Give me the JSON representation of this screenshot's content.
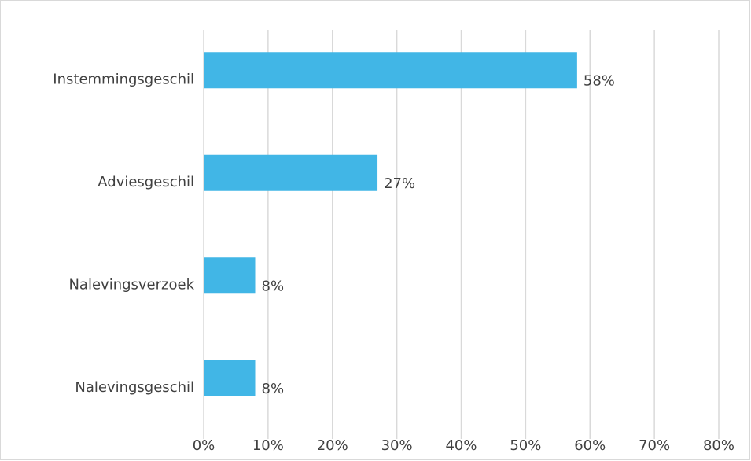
{
  "chart_data": {
    "type": "bar",
    "orientation": "horizontal",
    "categories": [
      "Instemmingsgeschil",
      "Adviesgeschil",
      "Nalevingsverzoek",
      "Nalevingsgeschil"
    ],
    "values": [
      58,
      27,
      8,
      8
    ],
    "value_labels": [
      "58%",
      "27%",
      "8%",
      "8%"
    ],
    "color": "#41b6e6",
    "xlim": [
      0,
      80
    ],
    "xticks": [
      {
        "value": 0,
        "label": "0%"
      },
      {
        "value": 10,
        "label": "10%"
      },
      {
        "value": 20,
        "label": "20%"
      },
      {
        "value": 30,
        "label": "30%"
      },
      {
        "value": 40,
        "label": "40%"
      },
      {
        "value": 50,
        "label": "50%"
      },
      {
        "value": 60,
        "label": "60%"
      },
      {
        "value": 70,
        "label": "70%"
      },
      {
        "value": 80,
        "label": "80%"
      }
    ],
    "grid": true
  }
}
